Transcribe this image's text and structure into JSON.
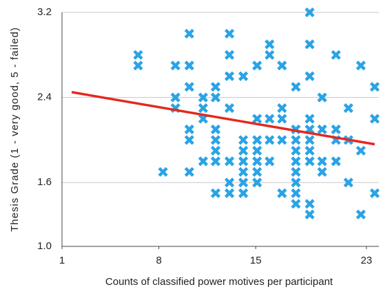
{
  "chart_data": {
    "type": "scatter",
    "x_label": "Counts of classified power motives per participant",
    "y_label": "Thesis Grade (1 - very good, 5 - failed)",
    "xlim": [
      1,
      23.9
    ],
    "ylim": [
      1.0,
      3.2
    ],
    "xticks": [
      1,
      8,
      15,
      23
    ],
    "yticks": [
      {
        "value": 1,
        "label": "1.0"
      },
      1.6,
      2.4,
      3.2
    ],
    "grid": true,
    "color": "#2ba3e6",
    "x": [
      6.5,
      6.5,
      8.3,
      9.2,
      9.2,
      9.2,
      10.2,
      10.2,
      10.2,
      10.2,
      10.2,
      10.2,
      11.2,
      11.2,
      11.2,
      11.2,
      12.1,
      12.1,
      12.1,
      12.1,
      12.1,
      12.1,
      12.1,
      13.1,
      13.1,
      13.1,
      13.1,
      13.1,
      13.1,
      13.1,
      14.1,
      14.1,
      14.1,
      14.1,
      14.1,
      14.1,
      14.1,
      15.1,
      15.1,
      15.1,
      15.1,
      15.1,
      15.1,
      15.1,
      16.0,
      16.0,
      16.0,
      16.0,
      16.0,
      16.9,
      16.9,
      16.9,
      16.9,
      16.9,
      17.9,
      17.9,
      17.9,
      17.9,
      17.9,
      17.9,
      17.9,
      17.9,
      17.9,
      18.9,
      18.9,
      18.9,
      18.9,
      18.9,
      18.9,
      18.9,
      18.9,
      18.9,
      18.9,
      19.8,
      19.8,
      19.8,
      19.8,
      20.8,
      20.8,
      20.8,
      20.8,
      21.7,
      21.7,
      21.7,
      22.6,
      22.6,
      22.6,
      23.6,
      23.6,
      23.6
    ],
    "y": [
      2.8,
      2.7,
      1.7,
      2.7,
      2.4,
      2.3,
      3.0,
      2.7,
      2.5,
      2.1,
      2.0,
      1.7,
      2.4,
      2.3,
      2.2,
      1.8,
      2.5,
      2.4,
      2.1,
      2.0,
      1.9,
      1.8,
      1.5,
      3.0,
      2.8,
      2.6,
      2.3,
      1.8,
      1.6,
      1.5,
      2.6,
      2.0,
      1.9,
      1.8,
      1.7,
      1.6,
      1.5,
      2.7,
      2.2,
      2.0,
      1.9,
      1.8,
      1.7,
      1.6,
      2.9,
      2.8,
      2.2,
      2.0,
      1.8,
      2.7,
      2.3,
      2.2,
      2.0,
      1.5,
      2.5,
      2.1,
      2.0,
      1.9,
      1.8,
      1.7,
      1.6,
      1.5,
      1.4,
      3.2,
      2.9,
      2.6,
      2.2,
      2.1,
      2.0,
      1.9,
      1.8,
      1.4,
      1.3,
      2.4,
      2.1,
      1.8,
      1.7,
      2.8,
      2.1,
      2.0,
      1.8,
      2.3,
      2.0,
      1.6,
      2.7,
      1.9,
      1.3,
      2.5,
      2.2,
      1.5
    ],
    "trendline": {
      "x": [
        1.7,
        23.6
      ],
      "y": [
        2.45,
        1.96
      ],
      "color": "#e2291f"
    }
  }
}
